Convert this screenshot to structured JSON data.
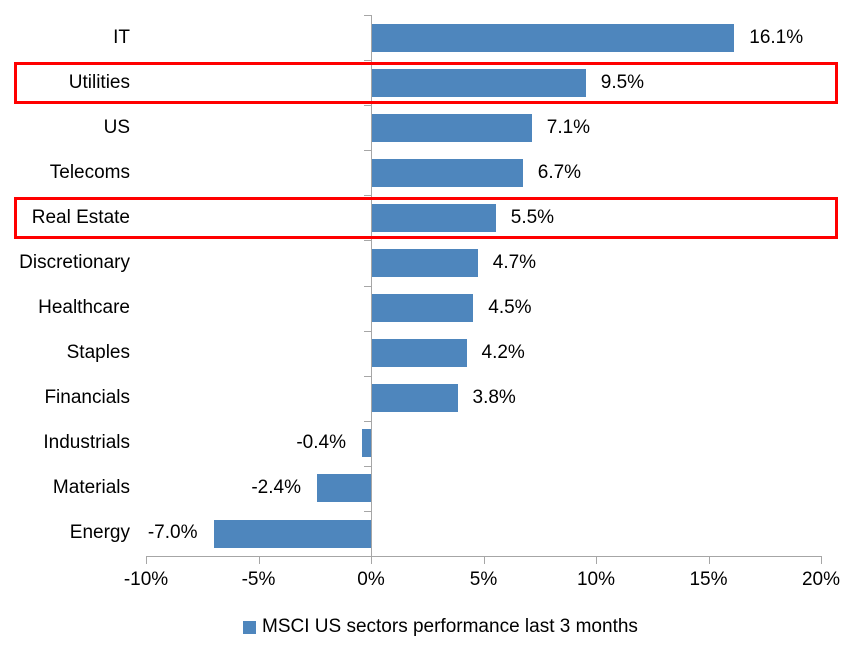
{
  "chart_data": {
    "type": "bar",
    "orientation": "horizontal",
    "title": "",
    "xlabel": "",
    "ylabel": "",
    "categories": [
      "IT",
      "Utilities",
      "US",
      "Telecoms",
      "Real Estate",
      "Discretionary",
      "Healthcare",
      "Staples",
      "Financials",
      "Industrials",
      "Materials",
      "Energy"
    ],
    "values": [
      16.1,
      9.5,
      7.1,
      6.7,
      5.5,
      4.7,
      4.5,
      4.2,
      3.8,
      -0.4,
      -2.4,
      -7.0
    ],
    "data_labels": [
      "16.1%",
      "9.5%",
      "7.1%",
      "6.7%",
      "5.5%",
      "4.7%",
      "4.5%",
      "4.2%",
      "3.8%",
      "-0.4%",
      "-2.4%",
      "-7.0%"
    ],
    "highlighted_categories": [
      "Utilities",
      "Real Estate"
    ],
    "x_ticks": [
      "-10%",
      "-5%",
      "0%",
      "5%",
      "10%",
      "15%",
      "20%"
    ],
    "x_tick_values": [
      -10,
      -5,
      0,
      5,
      10,
      15,
      20
    ],
    "xlim": [
      -10,
      20
    ],
    "grid": "off",
    "legend": "MSCI US sectors performance last 3 months",
    "legend_position": "bottom",
    "colors": {
      "bar": "#4E86BD",
      "highlight_border": "#FF0000",
      "axis": "#A6A6A6",
      "text": "#000000",
      "background": "#FFFFFF"
    }
  }
}
